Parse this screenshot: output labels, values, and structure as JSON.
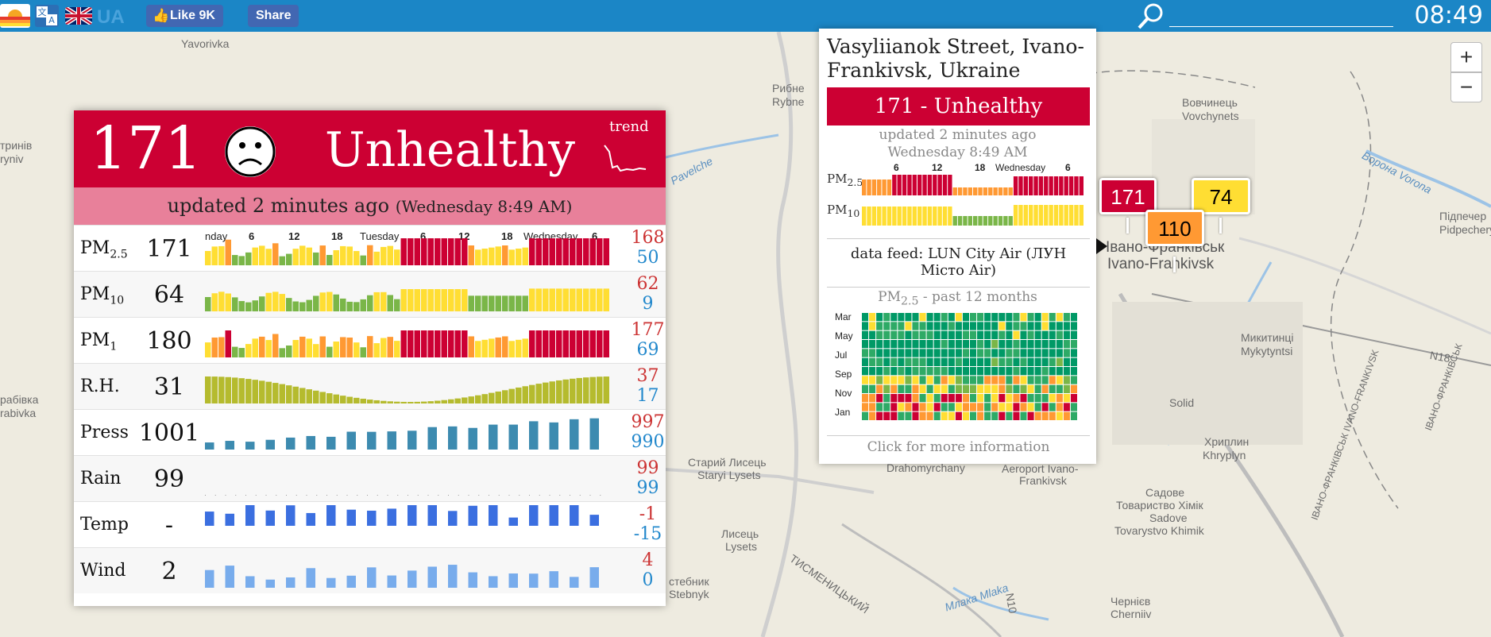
{
  "topbar": {
    "like_label": "Like 9K",
    "share_label": "Share",
    "country_code": "UA",
    "time": "08:49",
    "search_placeholder": "",
    "colors": {
      "bar": "#1b86c6",
      "facebook": "#4267b2"
    }
  },
  "zoom": {
    "in_label": "+",
    "out_label": "−"
  },
  "map": {
    "labels": [
      "Yavorivka",
      "Рибне",
      "Rybne",
      "Вовчинець",
      "Vovchynets",
      "Ворона Vorona",
      "тринів",
      "ryniv",
      "Pavelche",
      "Підпечер",
      "Pidpechery",
      "Івано-Франківськ",
      "Ivano-Frankivsk",
      "Микитинці",
      "Mykytyntsi",
      "N18",
      "рабівка",
      "rabivka",
      "Solid",
      "ІВАНО-ФРАНКІВСЬК IVANO-FRANKIVSK",
      "Старий Лисець",
      "Staryi Lysets",
      "Drahomyrchany",
      "Aeroport Ivano-",
      "Frankivsk",
      "Хриплин",
      "Khryplyn",
      "Садове",
      "Товариство Хімік",
      "Sadove",
      "Tovarystvo Khimik",
      "Лисець",
      "Lysets",
      "стебник",
      "Stebnyk",
      "ТИСМЕНИЦЬКИЙ",
      "Млака Mlaka",
      "Чернієв",
      "Cherniiv",
      "ІВАНО-ФРАНКІВСЬК",
      "N10"
    ]
  },
  "panel": {
    "aqi": "171",
    "level": "Unhealthy",
    "trend_label": "trend",
    "updated_prefix": "updated 2 minutes ago",
    "updated_time": "(Wednesday 8:49 AM)",
    "color": "#cc0033",
    "axis_labels": [
      "nday",
      "6",
      "12",
      "18",
      "Tuesday",
      "6",
      "12",
      "18",
      "Wednesday",
      "6"
    ],
    "rows": [
      {
        "label": "PM",
        "sub": "2.5",
        "value": "171",
        "max": "168",
        "min": "50"
      },
      {
        "label": "PM",
        "sub": "10",
        "value": "64",
        "max": "62",
        "min": "9"
      },
      {
        "label": "PM",
        "sub": "1",
        "value": "180",
        "max": "177",
        "min": "69"
      },
      {
        "label": "R.H.",
        "sub": "",
        "value": "31",
        "max": "37",
        "min": "17"
      },
      {
        "label": "Press",
        "sub": "",
        "value": "1001",
        "max": "997",
        "min": "990"
      },
      {
        "label": "Rain",
        "sub": "",
        "value": "99",
        "max": "99",
        "min": "99"
      },
      {
        "label": "Temp",
        "sub": "",
        "value": "-",
        "max": "-1",
        "min": "-15"
      },
      {
        "label": "Wind",
        "sub": "",
        "value": "2",
        "max": "4",
        "min": "0"
      }
    ]
  },
  "popup": {
    "title": "Vasyliianok Street, Ivano-Frankivsk, Ukraine",
    "aqi_text": "171 - Unhealthy",
    "updated": "updated 2 minutes ago",
    "updated_time": "Wednesday 8:49 AM",
    "pm25_label": "PM",
    "pm25_sub": "2.5",
    "pm10_label": "PM",
    "pm10_sub": "10",
    "ticks": [
      "6",
      "12",
      "18",
      "Wednesday",
      "6"
    ],
    "feed": "data feed: LUN City Air (ЛУН Місто Air)",
    "history_label": "PM",
    "history_sub": "2.5",
    "history_suffix": " - past 12 months",
    "months": [
      "Mar",
      "May",
      "Jul",
      "Sep",
      "Nov",
      "Jan"
    ],
    "more": "Click for more information"
  },
  "markers": [
    {
      "value": "171",
      "color": "#cc0033",
      "text_color": "#ffffff"
    },
    {
      "value": "110",
      "color": "#ff9933",
      "text_color": "#000000"
    },
    {
      "value": "74",
      "color": "#ffde33",
      "text_color": "#000000"
    }
  ]
}
